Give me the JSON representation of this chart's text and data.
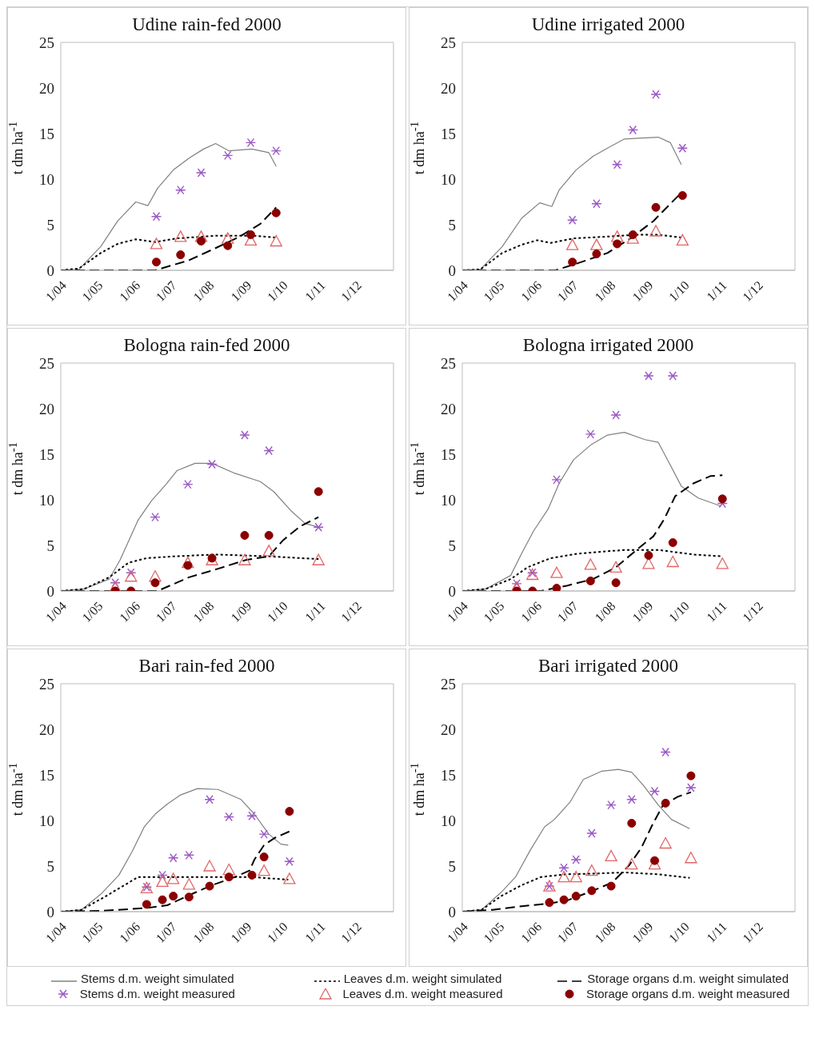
{
  "chart_data": [
    {
      "type": "line",
      "title": "Udine rain-fed 2000",
      "ylabel": "t dm ha$^{-1}$",
      "xlim": [
        "2000-04-01",
        "2001-01-01"
      ],
      "xticks": [
        {
          "value": "2000-04-01",
          "label": "1/04"
        },
        {
          "value": "2000-05-01",
          "label": "1/05"
        },
        {
          "value": "2000-06-01",
          "label": "1/06"
        },
        {
          "value": "2000-07-01",
          "label": "1/07"
        },
        {
          "value": "2000-08-01",
          "label": "1/08"
        },
        {
          "value": "2000-09-01",
          "label": "1/09"
        },
        {
          "value": "2000-10-01",
          "label": "1/10"
        },
        {
          "value": "2000-11-01",
          "label": "1/11"
        },
        {
          "value": "2000-12-01",
          "label": "1/12"
        }
      ],
      "ylim": [
        0,
        25
      ],
      "yticks": [
        0,
        5,
        10,
        15,
        20,
        25
      ],
      "series": [
        {
          "type": "line",
          "color": "#808080",
          "line_style": "solid",
          "x": [
            "2000-04-01",
            "2000-04-16",
            "2000-05-04",
            "2000-05-18",
            "2000-06-02",
            "2000-06-12",
            "2000-06-20",
            "2000-07-03",
            "2000-07-16",
            "2000-07-28",
            "2000-08-07",
            "2000-08-18",
            "2000-09-06",
            "2000-09-20",
            "2000-09-26"
          ],
          "values": [
            0,
            0.1,
            2.6,
            5.4,
            7.5,
            7.1,
            9.0,
            11.0,
            12.3,
            13.3,
            13.9,
            13.1,
            13.3,
            12.9,
            11.4
          ]
        },
        {
          "type": "line",
          "color": "#000000",
          "line_style": "dotted",
          "x": [
            "2000-04-01",
            "2000-04-16",
            "2000-05-04",
            "2000-05-18",
            "2000-06-02",
            "2000-06-18",
            "2000-07-06",
            "2000-08-08",
            "2000-09-06",
            "2000-09-26"
          ],
          "values": [
            0,
            0.2,
            1.9,
            2.9,
            3.4,
            3.1,
            3.5,
            3.8,
            3.8,
            3.6
          ]
        },
        {
          "type": "line",
          "color": "#000000",
          "line_style": "dashed",
          "x": [
            "2000-04-01",
            "2000-06-18",
            "2000-07-16",
            "2000-08-08",
            "2000-08-27",
            "2000-09-13",
            "2000-09-26"
          ],
          "values": [
            0,
            0,
            1.1,
            2.5,
            3.7,
            5.1,
            6.9
          ]
        },
        {
          "type": "scatter",
          "color": "#9b59c6",
          "marker": "cross",
          "x": [
            "2000-06-19",
            "2000-07-09",
            "2000-07-26",
            "2000-08-17",
            "2000-09-05",
            "2000-09-26"
          ],
          "values": [
            5.9,
            8.8,
            10.7,
            12.6,
            14.0,
            13.1
          ]
        },
        {
          "type": "scatter",
          "color": "#e06666",
          "marker": "triangle",
          "x": [
            "2000-06-19",
            "2000-07-09",
            "2000-07-26",
            "2000-08-17",
            "2000-09-05",
            "2000-09-26"
          ],
          "values": [
            2.9,
            3.7,
            3.7,
            3.5,
            3.3,
            3.2
          ]
        },
        {
          "type": "scatter",
          "color": "#8b0000",
          "marker": "circle",
          "x": [
            "2000-06-19",
            "2000-07-09",
            "2000-07-26",
            "2000-08-17",
            "2000-09-05",
            "2000-09-26"
          ],
          "values": [
            0.9,
            1.7,
            3.2,
            2.7,
            3.9,
            6.3
          ]
        }
      ]
    },
    {
      "type": "line",
      "title": "Udine irrigated 2000",
      "ylabel": "t dm ha$^{-1}$",
      "xlim": [
        "2000-04-01",
        "2001-01-01"
      ],
      "xticks": [
        {
          "value": "2000-04-01",
          "label": "1/04"
        },
        {
          "value": "2000-05-01",
          "label": "1/05"
        },
        {
          "value": "2000-06-01",
          "label": "1/06"
        },
        {
          "value": "2000-07-01",
          "label": "1/07"
        },
        {
          "value": "2000-08-01",
          "label": "1/08"
        },
        {
          "value": "2000-09-01",
          "label": "1/09"
        },
        {
          "value": "2000-10-01",
          "label": "1/10"
        },
        {
          "value": "2000-11-01",
          "label": "1/11"
        },
        {
          "value": "2000-12-01",
          "label": "1/12"
        }
      ],
      "ylim": [
        0,
        25
      ],
      "yticks": [
        0,
        5,
        10,
        15,
        20,
        25
      ],
      "series": [
        {
          "type": "line",
          "color": "#808080",
          "line_style": "solid",
          "x": [
            "2000-04-01",
            "2000-04-16",
            "2000-05-04",
            "2000-05-20",
            "2000-06-04",
            "2000-06-14",
            "2000-06-20",
            "2000-07-04",
            "2000-07-18",
            "2000-07-30",
            "2000-08-13",
            "2000-08-27",
            "2000-09-10",
            "2000-09-20",
            "2000-09-29"
          ],
          "values": [
            0,
            0.1,
            2.6,
            5.7,
            7.4,
            7.0,
            8.8,
            11.0,
            12.5,
            13.4,
            14.4,
            14.5,
            14.6,
            14.0,
            11.6
          ]
        },
        {
          "type": "line",
          "color": "#000000",
          "line_style": "dotted",
          "x": [
            "2000-04-01",
            "2000-04-16",
            "2000-05-04",
            "2000-05-20",
            "2000-06-02",
            "2000-06-13",
            "2000-07-02",
            "2000-07-30",
            "2000-08-23",
            "2000-09-10",
            "2000-09-29"
          ],
          "values": [
            0,
            0.1,
            1.9,
            2.8,
            3.3,
            3.0,
            3.5,
            3.7,
            3.9,
            3.9,
            3.6
          ]
        },
        {
          "type": "line",
          "color": "#000000",
          "line_style": "dashed",
          "x": [
            "2000-04-01",
            "2000-06-17",
            "2000-07-06",
            "2000-07-30",
            "2000-08-18",
            "2000-09-06",
            "2000-09-20",
            "2000-09-29"
          ],
          "values": [
            0,
            0,
            0.8,
            1.9,
            3.5,
            5.4,
            7.3,
            8.5
          ]
        },
        {
          "type": "scatter",
          "color": "#9b59c6",
          "marker": "cross",
          "x": [
            "2000-07-01",
            "2000-07-21",
            "2000-08-07",
            "2000-08-20",
            "2000-09-08",
            "2000-09-30"
          ],
          "values": [
            5.5,
            7.3,
            11.6,
            15.4,
            19.3,
            13.4
          ]
        },
        {
          "type": "scatter",
          "color": "#e06666",
          "marker": "triangle",
          "x": [
            "2000-07-01",
            "2000-07-21",
            "2000-08-07",
            "2000-08-20",
            "2000-09-08",
            "2000-09-30"
          ],
          "values": [
            2.8,
            2.8,
            3.7,
            3.5,
            4.3,
            3.3
          ]
        },
        {
          "type": "scatter",
          "color": "#8b0000",
          "marker": "circle",
          "x": [
            "2000-07-01",
            "2000-07-21",
            "2000-08-07",
            "2000-08-20",
            "2000-09-08",
            "2000-09-30"
          ],
          "values": [
            0.9,
            1.8,
            2.9,
            3.9,
            6.9,
            8.2
          ]
        }
      ]
    },
    {
      "type": "line",
      "title": "Bologna rain-fed 2000",
      "ylabel": "t dm ha$^{-1}$",
      "xlim": [
        "2000-04-01",
        "2001-01-01"
      ],
      "xticks": [
        {
          "value": "2000-04-01",
          "label": "1/04"
        },
        {
          "value": "2000-05-01",
          "label": "1/05"
        },
        {
          "value": "2000-06-01",
          "label": "1/06"
        },
        {
          "value": "2000-07-01",
          "label": "1/07"
        },
        {
          "value": "2000-08-01",
          "label": "1/08"
        },
        {
          "value": "2000-09-01",
          "label": "1/09"
        },
        {
          "value": "2000-10-01",
          "label": "1/10"
        },
        {
          "value": "2000-11-01",
          "label": "1/11"
        },
        {
          "value": "2000-12-01",
          "label": "1/12"
        }
      ],
      "ylim": [
        0,
        25
      ],
      "yticks": [
        0,
        5,
        10,
        15,
        20,
        25
      ],
      "series": [
        {
          "type": "line",
          "color": "#808080",
          "line_style": "solid",
          "x": [
            "2000-04-01",
            "2000-04-20",
            "2000-05-11",
            "2000-05-20",
            "2000-06-04",
            "2000-06-15",
            "2000-06-27",
            "2000-07-06",
            "2000-07-21",
            "2000-08-04",
            "2000-08-23",
            "2000-09-13",
            "2000-09-24",
            "2000-10-09",
            "2000-10-20",
            "2000-10-31"
          ],
          "values": [
            0,
            0.2,
            1.3,
            3.4,
            7.8,
            9.9,
            11.7,
            13.2,
            14.0,
            14.0,
            12.9,
            12.0,
            10.9,
            8.7,
            7.4,
            7.0
          ]
        },
        {
          "type": "line",
          "color": "#000000",
          "line_style": "dotted",
          "x": [
            "2000-04-01",
            "2000-04-20",
            "2000-05-11",
            "2000-05-27",
            "2000-06-11",
            "2000-07-04",
            "2000-08-08",
            "2000-09-20",
            "2000-10-31"
          ],
          "values": [
            0,
            0.2,
            1.5,
            3.1,
            3.6,
            3.8,
            4.0,
            3.8,
            3.5
          ]
        },
        {
          "type": "line",
          "color": "#000000",
          "line_style": "dashed",
          "x": [
            "2000-04-01",
            "2000-06-20",
            "2000-07-16",
            "2000-08-08",
            "2000-09-01",
            "2000-09-20",
            "2000-10-02",
            "2000-10-16",
            "2000-10-31"
          ],
          "values": [
            0,
            0,
            1.5,
            2.4,
            3.4,
            3.8,
            5.6,
            7.1,
            8.1
          ]
        },
        {
          "type": "scatter",
          "color": "#9b59c6",
          "marker": "cross",
          "x": [
            "2000-05-16",
            "2000-05-29",
            "2000-06-18",
            "2000-07-15",
            "2000-08-04",
            "2000-08-31",
            "2000-09-20",
            "2000-10-31"
          ],
          "values": [
            0.9,
            2.0,
            8.1,
            11.7,
            13.9,
            17.1,
            15.4,
            7.0
          ]
        },
        {
          "type": "scatter",
          "color": "#e06666",
          "marker": "triangle",
          "x": [
            "2000-05-16",
            "2000-05-29",
            "2000-06-18",
            "2000-07-15",
            "2000-08-04",
            "2000-08-31",
            "2000-09-20",
            "2000-10-31"
          ],
          "values": [
            0.4,
            1.6,
            1.6,
            3.1,
            3.4,
            3.4,
            4.4,
            3.4
          ]
        },
        {
          "type": "scatter",
          "color": "#8b0000",
          "marker": "circle",
          "x": [
            "2000-05-16",
            "2000-05-29",
            "2000-06-18",
            "2000-07-15",
            "2000-08-04",
            "2000-08-31",
            "2000-09-20",
            "2000-10-31"
          ],
          "values": [
            0,
            0,
            0.9,
            2.8,
            3.6,
            6.1,
            6.1,
            10.9
          ]
        }
      ]
    },
    {
      "type": "line",
      "title": "Bologna irrigated 2000",
      "ylabel": "t dm ha$^{-1}$",
      "xlim": [
        "2000-04-01",
        "2001-01-01"
      ],
      "xticks": [
        {
          "value": "2000-04-01",
          "label": "1/04"
        },
        {
          "value": "2000-05-01",
          "label": "1/05"
        },
        {
          "value": "2000-06-01",
          "label": "1/06"
        },
        {
          "value": "2000-07-01",
          "label": "1/07"
        },
        {
          "value": "2000-08-01",
          "label": "1/08"
        },
        {
          "value": "2000-09-01",
          "label": "1/09"
        },
        {
          "value": "2000-10-01",
          "label": "1/10"
        },
        {
          "value": "2000-11-01",
          "label": "1/11"
        },
        {
          "value": "2000-12-01",
          "label": "1/12"
        }
      ],
      "ylim": [
        0,
        25
      ],
      "yticks": [
        0,
        5,
        10,
        15,
        20,
        25
      ],
      "series": [
        {
          "type": "line",
          "color": "#808080",
          "line_style": "solid",
          "x": [
            "2000-04-01",
            "2000-04-20",
            "2000-05-11",
            "2000-05-20",
            "2000-05-30",
            "2000-06-11",
            "2000-06-20",
            "2000-07-02",
            "2000-07-16",
            "2000-07-30",
            "2000-08-13",
            "2000-08-30",
            "2000-09-10",
            "2000-09-20",
            "2000-09-29",
            "2000-10-13",
            "2000-11-01"
          ],
          "values": [
            0,
            0.2,
            1.7,
            4.1,
            6.6,
            9.0,
            11.8,
            14.4,
            16.0,
            17.1,
            17.4,
            16.6,
            16.3,
            13.8,
            11.5,
            10.2,
            9.3
          ]
        },
        {
          "type": "line",
          "color": "#000000",
          "line_style": "dotted",
          "x": [
            "2000-04-01",
            "2000-04-20",
            "2000-05-11",
            "2000-05-25",
            "2000-06-13",
            "2000-07-06",
            "2000-08-13",
            "2000-09-10",
            "2000-10-09",
            "2000-11-02"
          ],
          "values": [
            0,
            0.2,
            1.3,
            2.6,
            3.6,
            4.1,
            4.5,
            4.5,
            4.0,
            3.8
          ]
        },
        {
          "type": "line",
          "color": "#000000",
          "line_style": "dashed",
          "x": [
            "2000-04-01",
            "2000-06-05",
            "2000-06-27",
            "2000-07-18",
            "2000-08-06",
            "2000-08-23",
            "2000-09-06",
            "2000-09-15",
            "2000-09-24",
            "2000-10-09",
            "2000-10-23",
            "2000-11-02"
          ],
          "values": [
            0,
            0,
            0.6,
            1.3,
            2.6,
            4.5,
            6.0,
            7.9,
            10.4,
            11.8,
            12.6,
            12.7
          ]
        },
        {
          "type": "scatter",
          "color": "#9b59c6",
          "marker": "cross",
          "x": [
            "2000-05-16",
            "2000-05-29",
            "2000-06-18",
            "2000-07-16",
            "2000-08-06",
            "2000-09-02",
            "2000-09-22",
            "2000-11-02"
          ],
          "values": [
            0.8,
            2.0,
            12.2,
            17.2,
            19.3,
            23.6,
            23.6,
            9.6
          ]
        },
        {
          "type": "scatter",
          "color": "#e06666",
          "marker": "triangle",
          "x": [
            "2000-05-16",
            "2000-05-29",
            "2000-06-18",
            "2000-07-16",
            "2000-08-06",
            "2000-09-02",
            "2000-09-22",
            "2000-11-02"
          ],
          "values": [
            0.4,
            1.8,
            2.0,
            2.9,
            2.6,
            3.0,
            3.2,
            3.0
          ]
        },
        {
          "type": "scatter",
          "color": "#8b0000",
          "marker": "circle",
          "x": [
            "2000-05-16",
            "2000-05-29",
            "2000-06-18",
            "2000-07-16",
            "2000-08-06",
            "2000-09-02",
            "2000-09-22",
            "2000-11-02"
          ],
          "values": [
            0,
            0,
            0.3,
            1.1,
            0.9,
            3.9,
            5.3,
            10.1
          ]
        }
      ]
    },
    {
      "type": "line",
      "title": "Bari rain-fed 2000",
      "ylabel": "t dm ha$^{-1}$",
      "xlim": [
        "2000-04-01",
        "2001-01-01"
      ],
      "xticks": [
        {
          "value": "2000-04-01",
          "label": "1/04"
        },
        {
          "value": "2000-05-01",
          "label": "1/05"
        },
        {
          "value": "2000-06-01",
          "label": "1/06"
        },
        {
          "value": "2000-07-01",
          "label": "1/07"
        },
        {
          "value": "2000-08-01",
          "label": "1/08"
        },
        {
          "value": "2000-09-01",
          "label": "1/09"
        },
        {
          "value": "2000-10-01",
          "label": "1/10"
        },
        {
          "value": "2000-11-01",
          "label": "1/11"
        },
        {
          "value": "2000-12-01",
          "label": "1/12"
        }
      ],
      "ylim": [
        0,
        25
      ],
      "yticks": [
        0,
        5,
        10,
        15,
        20,
        25
      ],
      "series": [
        {
          "type": "line",
          "color": "#808080",
          "line_style": "solid",
          "x": [
            "2000-04-01",
            "2000-04-18",
            "2000-05-04",
            "2000-05-19",
            "2000-05-30",
            "2000-06-09",
            "2000-06-18",
            "2000-06-28",
            "2000-07-09",
            "2000-07-23",
            "2000-08-09",
            "2000-08-28",
            "2000-09-08",
            "2000-09-20",
            "2000-09-30",
            "2000-10-06"
          ],
          "values": [
            0,
            0.2,
            1.9,
            4.0,
            6.6,
            9.3,
            10.7,
            11.8,
            12.8,
            13.5,
            13.4,
            12.3,
            10.7,
            8.5,
            7.4,
            7.3
          ]
        },
        {
          "type": "line",
          "color": "#000000",
          "line_style": "dotted",
          "x": [
            "2000-04-01",
            "2000-04-18",
            "2000-05-07",
            "2000-05-21",
            "2000-06-04",
            "2000-06-23",
            "2000-08-09",
            "2000-09-06",
            "2000-10-06"
          ],
          "values": [
            0,
            0.2,
            1.6,
            2.7,
            3.8,
            3.8,
            3.8,
            3.8,
            3.5
          ]
        },
        {
          "type": "line",
          "color": "#000000",
          "line_style": "dashed",
          "x": [
            "2000-04-01",
            "2000-05-07",
            "2000-06-11",
            "2000-06-28",
            "2000-07-16",
            "2000-08-04",
            "2000-08-23",
            "2000-09-04",
            "2000-09-08",
            "2000-09-16",
            "2000-09-25",
            "2000-10-07"
          ],
          "values": [
            0,
            0.1,
            0.4,
            0.7,
            1.8,
            2.9,
            3.8,
            4.5,
            5.7,
            7.3,
            8.1,
            8.8
          ]
        },
        {
          "type": "scatter",
          "color": "#9b59c6",
          "marker": "cross",
          "x": [
            "2000-06-11",
            "2000-06-24",
            "2000-07-03",
            "2000-07-16",
            "2000-08-02",
            "2000-08-18",
            "2000-09-06",
            "2000-09-16",
            "2000-10-07"
          ],
          "values": [
            2.7,
            4.0,
            5.9,
            6.2,
            12.3,
            10.4,
            10.5,
            8.5,
            5.5
          ]
        },
        {
          "type": "scatter",
          "color": "#e06666",
          "marker": "triangle",
          "x": [
            "2000-06-11",
            "2000-06-24",
            "2000-07-03",
            "2000-07-16",
            "2000-08-02",
            "2000-08-18",
            "2000-09-16",
            "2000-10-07"
          ],
          "values": [
            2.6,
            3.3,
            3.6,
            3.0,
            5.0,
            4.6,
            4.5,
            3.6
          ]
        },
        {
          "type": "scatter",
          "color": "#8b0000",
          "marker": "circle",
          "x": [
            "2000-06-11",
            "2000-06-24",
            "2000-07-03",
            "2000-07-16",
            "2000-08-02",
            "2000-08-18",
            "2000-09-06",
            "2000-09-16",
            "2000-10-07"
          ],
          "values": [
            0.8,
            1.3,
            1.7,
            1.6,
            2.8,
            3.8,
            4.0,
            6.0,
            11.0
          ]
        }
      ]
    },
    {
      "type": "line",
      "title": "Bari irrigated 2000",
      "ylabel": "t dm ha$^{-1}$",
      "legend": "bottom",
      "xlim": [
        "2000-04-01",
        "2001-01-01"
      ],
      "xticks": [
        {
          "value": "2000-04-01",
          "label": "1/04"
        },
        {
          "value": "2000-05-01",
          "label": "1/05"
        },
        {
          "value": "2000-06-01",
          "label": "1/06"
        },
        {
          "value": "2000-07-01",
          "label": "1/07"
        },
        {
          "value": "2000-08-01",
          "label": "1/08"
        },
        {
          "value": "2000-09-01",
          "label": "1/09"
        },
        {
          "value": "2000-10-01",
          "label": "1/10"
        },
        {
          "value": "2000-11-01",
          "label": "1/11"
        },
        {
          "value": "2000-12-01",
          "label": "1/12"
        }
      ],
      "ylim": [
        0,
        25
      ],
      "yticks": [
        0,
        5,
        10,
        15,
        20,
        25
      ],
      "series": [
        {
          "type": "line",
          "name": "Stems d.m. weight simulated",
          "color": "#808080",
          "line_style": "solid",
          "x": [
            "2000-04-01",
            "2000-04-17",
            "2000-05-03",
            "2000-05-15",
            "2000-05-27",
            "2000-06-08",
            "2000-06-16",
            "2000-06-29",
            "2000-07-10",
            "2000-07-25",
            "2000-08-08",
            "2000-08-19",
            "2000-08-29",
            "2000-09-10",
            "2000-09-21",
            "2000-10-06"
          ],
          "values": [
            0,
            0.2,
            2.1,
            3.8,
            6.7,
            9.3,
            10.1,
            12.0,
            14.5,
            15.4,
            15.6,
            15.3,
            13.8,
            11.7,
            10.1,
            9.1
          ]
        },
        {
          "type": "line",
          "name": "Leaves d.m. weight simulated",
          "color": "#000000",
          "line_style": "dotted",
          "x": [
            "2000-04-01",
            "2000-04-17",
            "2000-05-03",
            "2000-05-20",
            "2000-06-05",
            "2000-06-26",
            "2000-07-25",
            "2000-08-13",
            "2000-09-10",
            "2000-10-06"
          ],
          "values": [
            0,
            0.2,
            1.7,
            2.9,
            3.8,
            4.1,
            4.2,
            4.3,
            4.1,
            3.7
          ]
        },
        {
          "type": "line",
          "name": "Storage organs d.m. weight simulated",
          "color": "#000000",
          "line_style": "dashed",
          "x": [
            "2000-04-01",
            "2000-04-26",
            "2000-05-20",
            "2000-06-12",
            "2000-06-26",
            "2000-07-18",
            "2000-08-03",
            "2000-08-17",
            "2000-08-27",
            "2000-09-05",
            "2000-09-14",
            "2000-09-26",
            "2000-10-07"
          ],
          "values": [
            0,
            0.2,
            0.6,
            0.9,
            1.2,
            2.3,
            3.2,
            5.1,
            7.0,
            9.5,
            11.7,
            12.6,
            13.1
          ]
        },
        {
          "type": "scatter",
          "name": "Stems d.m. weight measured",
          "color": "#9b59c6",
          "marker": "cross",
          "x": [
            "2000-06-12",
            "2000-06-24",
            "2000-07-04",
            "2000-07-17",
            "2000-08-02",
            "2000-08-19",
            "2000-09-07",
            "2000-09-16",
            "2000-10-07"
          ],
          "values": [
            2.8,
            4.8,
            5.7,
            8.6,
            11.7,
            12.3,
            13.2,
            17.5,
            13.6
          ]
        },
        {
          "type": "scatter",
          "name": "Leaves d.m. weight  measured",
          "color": "#e06666",
          "marker": "triangle",
          "x": [
            "2000-06-12",
            "2000-06-24",
            "2000-07-04",
            "2000-07-17",
            "2000-08-02",
            "2000-08-19",
            "2000-09-07",
            "2000-09-16",
            "2000-10-07"
          ],
          "values": [
            2.8,
            3.8,
            3.8,
            4.5,
            6.1,
            5.2,
            5.2,
            7.5,
            5.9
          ]
        },
        {
          "type": "scatter",
          "name": "Storage organs d.m. weight measured",
          "color": "#8b0000",
          "marker": "circle",
          "x": [
            "2000-06-12",
            "2000-06-24",
            "2000-07-04",
            "2000-07-17",
            "2000-08-02",
            "2000-08-19",
            "2000-09-07",
            "2000-09-16",
            "2000-10-07"
          ],
          "values": [
            1.0,
            1.3,
            1.7,
            2.3,
            2.8,
            9.7,
            5.6,
            11.9,
            14.9
          ]
        }
      ]
    }
  ]
}
